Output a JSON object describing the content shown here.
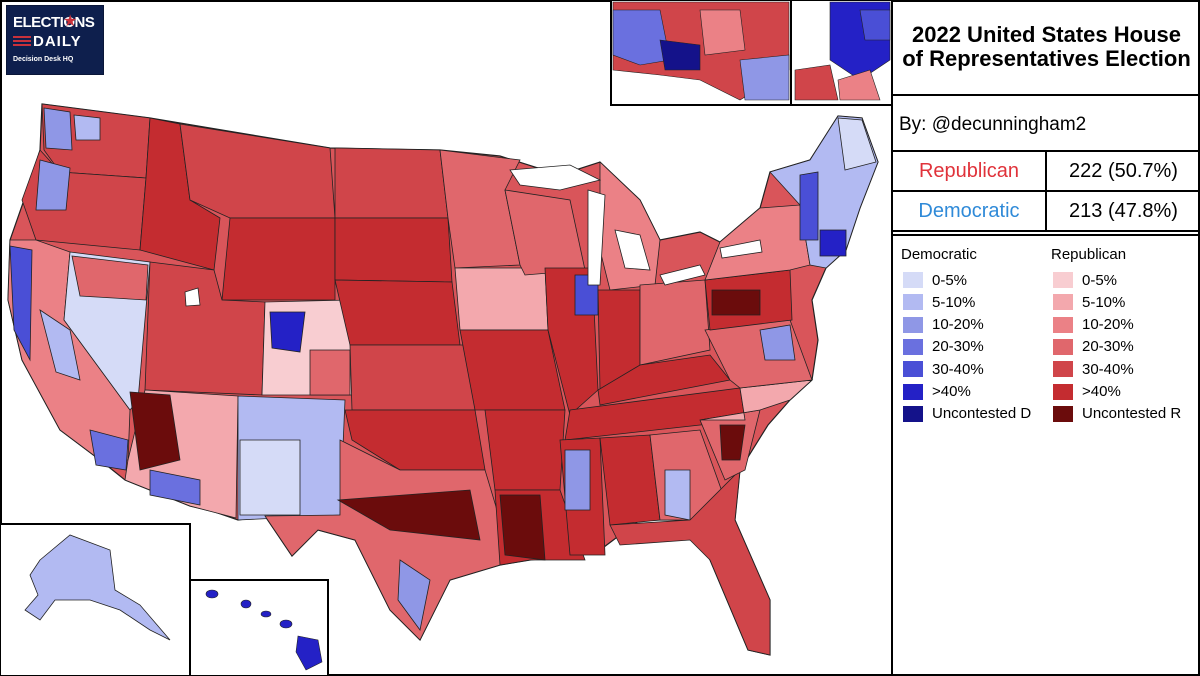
{
  "logo": {
    "line1": "ELECTIONS",
    "line2": "DAILY",
    "line3": "Decision Desk HQ"
  },
  "panel": {
    "title": "2022 United States House of Representatives Election",
    "byline": "By: @decunningham2",
    "results": [
      {
        "party": "Republican",
        "seats": "222 (50.7%)",
        "color": "#e0323a"
      },
      {
        "party": "Democratic",
        "seats": "213 (47.8%)",
        "color": "#2f8ad8"
      }
    ]
  },
  "legend": {
    "dem_heading": "Democratic",
    "rep_heading": "Republican",
    "dem_items": [
      {
        "label": "0-5%",
        "color": "#d5dbf7"
      },
      {
        "label": "5-10%",
        "color": "#b2baf2"
      },
      {
        "label": "10-20%",
        "color": "#8f97e6"
      },
      {
        "label": "20-30%",
        "color": "#6a70df"
      },
      {
        "label": "30-40%",
        "color": "#4a4fd6"
      },
      {
        "label": ">40%",
        "color": "#2421c6"
      },
      {
        "label": "Uncontested D",
        "color": "#14128a"
      }
    ],
    "rep_items": [
      {
        "label": "0-5%",
        "color": "#f8cdd1"
      },
      {
        "label": "5-10%",
        "color": "#f3a8ad"
      },
      {
        "label": "10-20%",
        "color": "#eb8186"
      },
      {
        "label": "20-30%",
        "color": "#e0676c"
      },
      {
        "label": "30-40%",
        "color": "#d0454a"
      },
      {
        "label": ">40%",
        "color": "#c42c30"
      },
      {
        "label": "Uncontested R",
        "color": "#6b0c0c"
      }
    ]
  }
}
